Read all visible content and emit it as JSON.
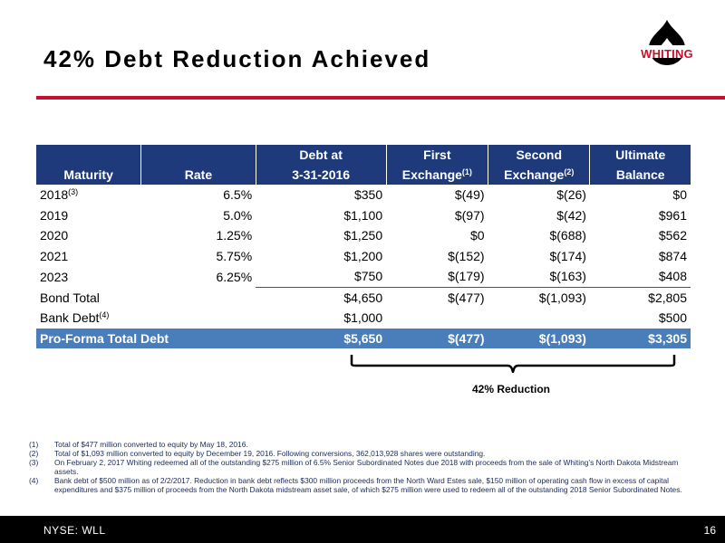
{
  "slide": {
    "title": "42%  Debt Reduction Achieved",
    "logo_text": "WHITING",
    "colors": {
      "accent_red": "#c8102e",
      "header_navy": "#1f3a7a",
      "total_row_blue": "#4a7ebb",
      "footer_black": "#000000"
    }
  },
  "table": {
    "headers_top": [
      "",
      "",
      "Debt at",
      "First",
      "Second",
      "Ultimate"
    ],
    "headers_bottom": [
      {
        "text": "Maturity",
        "sup": ""
      },
      {
        "text": "Rate",
        "sup": ""
      },
      {
        "text": "3-31-2016",
        "sup": ""
      },
      {
        "text": "Exchange",
        "sup": "(1)"
      },
      {
        "text": "Exchange",
        "sup": "(2)"
      },
      {
        "text": "Balance",
        "sup": ""
      }
    ],
    "rows": [
      {
        "maturity": "2018",
        "sup": "(3)",
        "rate": "6.5%",
        "debt": "$350",
        "first": "$(49)",
        "second": "$(26)",
        "ultimate": "$0"
      },
      {
        "maturity": "2019",
        "sup": "",
        "rate": "5.0%",
        "debt": "$1,100",
        "first": "$(97)",
        "second": "$(42)",
        "ultimate": "$961"
      },
      {
        "maturity": "2020",
        "sup": "",
        "rate": "1.25%",
        "debt": "$1,250",
        "first": "$0",
        "second": "$(688)",
        "ultimate": "$562"
      },
      {
        "maturity": "2021",
        "sup": "",
        "rate": "5.75%",
        "debt": "$1,200",
        "first": "$(152)",
        "second": "$(174)",
        "ultimate": "$874"
      },
      {
        "maturity": "2023",
        "sup": "",
        "rate": "6.25%",
        "debt": "$750",
        "first": "$(179)",
        "second": "$(163)",
        "ultimate": "$408"
      }
    ],
    "bond_total": {
      "label": "Bond Total",
      "debt": "$4,650",
      "first": "$(477)",
      "second": "$(1,093)",
      "ultimate": "$2,805"
    },
    "bank_debt": {
      "label": "Bank Debt",
      "sup": "(4)",
      "debt": "$1,000",
      "first": "",
      "second": "",
      "ultimate": "$500"
    },
    "pro_forma": {
      "label": "Pro-Forma Total Debt",
      "debt": "$5,650",
      "first": "$(477)",
      "second": "$(1,093)",
      "ultimate": "$3,305"
    }
  },
  "reduction_label": "42% Reduction",
  "footnotes": [
    {
      "num": "(1)",
      "text": "Total of $477 million converted to equity by May 18, 2016."
    },
    {
      "num": "(2)",
      "text": "Total of $1,093 million converted to equity by December 19, 2016. Following conversions, 362,013,928 shares were outstanding."
    },
    {
      "num": "(3)",
      "text": "On February 2, 2017 Whiting redeemed all of the outstanding $275 million of 6.5% Senior Subordinated Notes due 2018 with proceeds from the sale of Whiting’s North Dakota Midstream assets."
    },
    {
      "num": "(4)",
      "text": "Bank debt of $500 million as of 2/2/2017. Reduction in bank debt reflects $300 million proceeds from the North Ward Estes sale, $150 million of operating cash flow in excess of capital expenditures and $375 million of proceeds from the North Dakota midstream asset sale, of which $275 million were used to redeem all of the outstanding 2018 Senior Subordinated Notes."
    }
  ],
  "footer": {
    "ticker": "NYSE:  WLL",
    "page_number": "16"
  }
}
